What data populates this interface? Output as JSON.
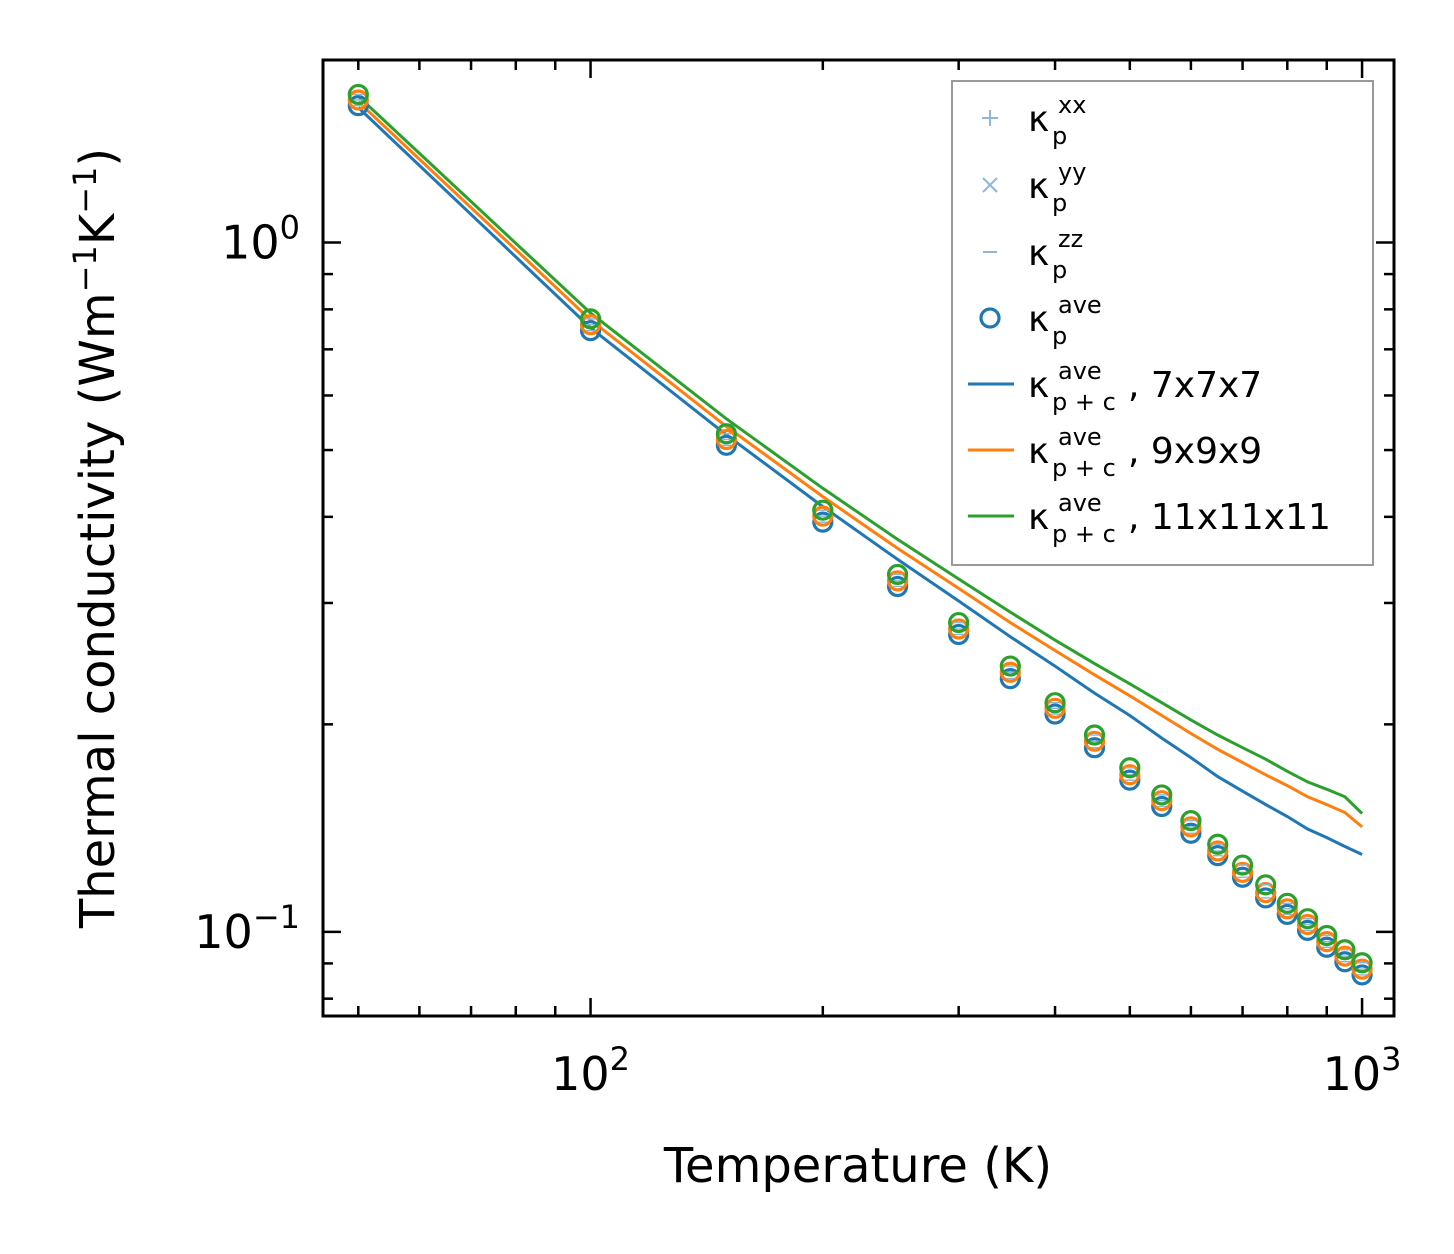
{
  "chart_data": {
    "type": "line",
    "xscale": "log",
    "yscale": "log",
    "xlabel": "Temperature (K)",
    "ylabel": "Thermal conductivity (Wm",
    "ylabel_unit_exp1": "−1",
    "ylabel_unit_mid": "K",
    "ylabel_unit_exp2": "−1",
    "ylabel_close": ")",
    "xlim": [
      45,
      1100
    ],
    "ylim": [
      0.0755,
      1.84
    ],
    "x_ticks": [
      {
        "value": 100,
        "base": "10",
        "exp": "2"
      },
      {
        "value": 1000,
        "base": "10",
        "exp": "3"
      }
    ],
    "y_ticks": [
      {
        "value": 1.0,
        "base": "10",
        "exp": "0"
      },
      {
        "value": 0.1,
        "base": "10",
        "exp": "−1"
      }
    ],
    "colors": {
      "blue": "#1f77b4",
      "orange": "#ff7f0e",
      "green": "#2ca02c",
      "light_blue": "#8fb8d8"
    },
    "legend": [
      {
        "kind": "plus",
        "label": "κ",
        "sub": "p",
        "sup": "xx",
        "color": "#8fb8d8"
      },
      {
        "kind": "cross",
        "label": "κ",
        "sub": "p",
        "sup": "yy",
        "color": "#8fb8d8"
      },
      {
        "kind": "dash",
        "label": "κ",
        "sub": "p",
        "sup": "zz",
        "color": "#8fb8d8"
      },
      {
        "kind": "circle",
        "label": "κ",
        "sub": "p",
        "sup": "ave",
        "color": "#1f77b4"
      },
      {
        "kind": "line",
        "label": "κ",
        "sub": "p + c",
        "sup": "ave",
        "suffix": ", 7x7x7",
        "color": "#1f77b4"
      },
      {
        "kind": "line",
        "label": "κ",
        "sub": "p + c",
        "sup": "ave",
        "suffix": ", 9x9x9",
        "color": "#ff7f0e"
      },
      {
        "kind": "line",
        "label": "κ",
        "sub": "p + c",
        "sup": "ave",
        "suffix": ", 11x11x11",
        "color": "#2ca02c"
      }
    ],
    "x": [
      50,
      100,
      150,
      200,
      250,
      300,
      350,
      400,
      450,
      500,
      550,
      600,
      650,
      700,
      750,
      800,
      850,
      900,
      950,
      1000
    ],
    "series": [
      {
        "name": "κp^ave 7x7x7 (points)",
        "kind": "circle",
        "color": "#1f77b4",
        "values": [
          1.58,
          0.745,
          0.508,
          0.393,
          0.317,
          0.27,
          0.233,
          0.207,
          0.185,
          0.166,
          0.152,
          0.139,
          0.129,
          0.12,
          0.112,
          0.106,
          0.1005,
          0.095,
          0.0905,
          0.0866
        ]
      },
      {
        "name": "κp^ave 9x9x9 (points)",
        "kind": "circle",
        "color": "#ff7f0e",
        "values": [
          1.61,
          0.76,
          0.518,
          0.401,
          0.323,
          0.275,
          0.238,
          0.211,
          0.189,
          0.169,
          0.155,
          0.142,
          0.131,
          0.122,
          0.114,
          0.108,
          0.1025,
          0.0968,
          0.0922,
          0.0883
        ]
      },
      {
        "name": "κp^ave 11x11x11 (points)",
        "kind": "circle",
        "color": "#2ca02c",
        "values": [
          1.64,
          0.775,
          0.528,
          0.409,
          0.33,
          0.281,
          0.243,
          0.215,
          0.193,
          0.173,
          0.158,
          0.145,
          0.134,
          0.125,
          0.117,
          0.11,
          0.1045,
          0.0988,
          0.0942,
          0.0902
        ]
      },
      {
        "name": "κp+c^ave, 7x7x7",
        "kind": "line",
        "color": "#1f77b4",
        "values": [
          1.57,
          0.752,
          0.526,
          0.414,
          0.347,
          0.302,
          0.268,
          0.243,
          0.222,
          0.206,
          0.191,
          0.179,
          0.168,
          0.16,
          0.153,
          0.147,
          0.141,
          0.137,
          0.133,
          0.1295
        ]
      },
      {
        "name": "κp+c^ave, 9x9x9",
        "kind": "line",
        "color": "#ff7f0e",
        "values": [
          1.6,
          0.772,
          0.541,
          0.428,
          0.36,
          0.315,
          0.281,
          0.256,
          0.236,
          0.22,
          0.206,
          0.194,
          0.184,
          0.176,
          0.169,
          0.163,
          0.157,
          0.153,
          0.149,
          0.142
        ]
      },
      {
        "name": "κp+c^ave, 11x11x11",
        "kind": "line",
        "color": "#2ca02c",
        "values": [
          1.63,
          0.79,
          0.555,
          0.44,
          0.371,
          0.325,
          0.291,
          0.265,
          0.245,
          0.229,
          0.215,
          0.203,
          0.193,
          0.185,
          0.178,
          0.171,
          0.165,
          0.161,
          0.157,
          0.1485
        ]
      }
    ]
  }
}
